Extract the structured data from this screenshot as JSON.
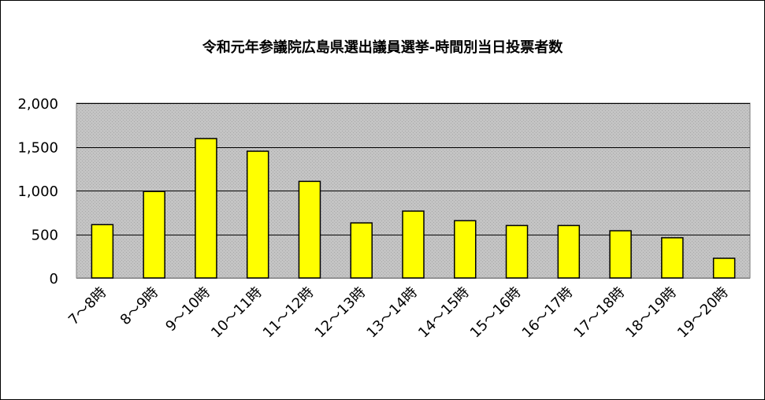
{
  "chart_data": {
    "type": "bar",
    "title": "令和元年参議院広島県選出議員選挙-時間別当日投票者数",
    "categories": [
      "7～8時",
      "8～9時",
      "9～10時",
      "10～11時",
      "11～12時",
      "12～13時",
      "13～14時",
      "14～15時",
      "15～16時",
      "16～17時",
      "17～18時",
      "18～19時",
      "19～20時"
    ],
    "values": [
      610,
      990,
      1595,
      1450,
      1105,
      630,
      765,
      655,
      600,
      600,
      540,
      460,
      225
    ],
    "ylim": [
      0,
      2000
    ],
    "yticks": [
      0,
      500,
      1000,
      1500,
      2000
    ],
    "ytick_labels": [
      "0",
      "500",
      "1,000",
      "1,500",
      "2,000"
    ],
    "xlabel": "",
    "ylabel": "",
    "grid": true,
    "legend": "none",
    "colors": {
      "bar_fill": "#ffff00",
      "bar_stroke": "#000000",
      "plot_background": "#c0c0c0",
      "gridline": "#000000"
    }
  }
}
